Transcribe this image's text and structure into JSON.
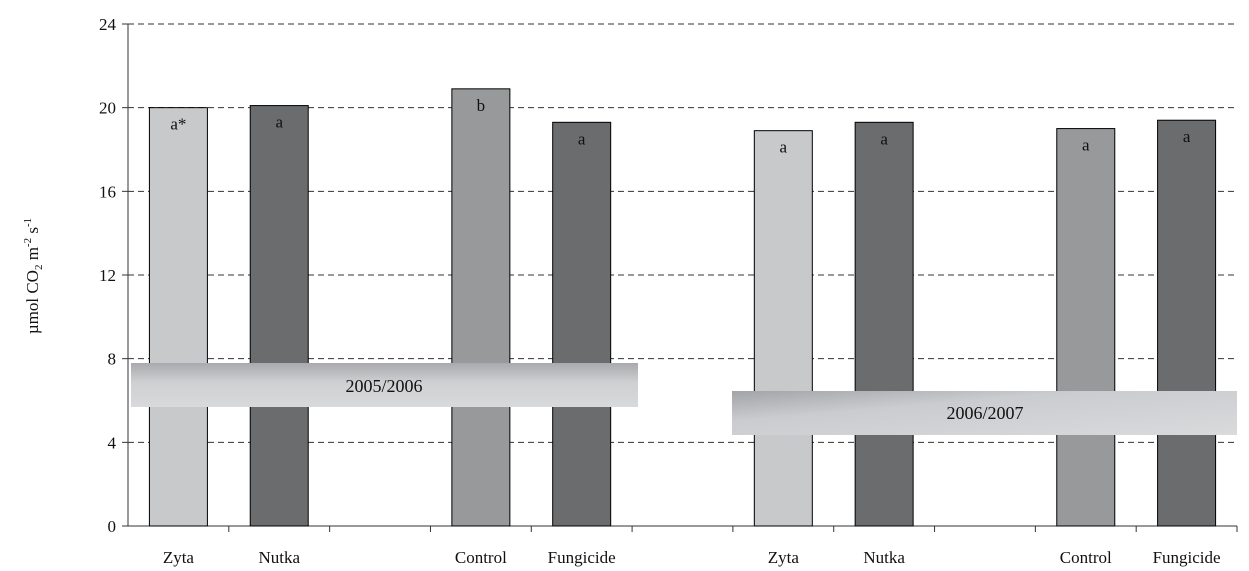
{
  "chart_data": {
    "type": "bar",
    "ylabel": {
      "prefix": "µmol CO",
      "sub": "2",
      "mid1": " m",
      "sup1": "-2",
      "mid2": " s",
      "sup2": "-1"
    },
    "ylim": [
      0,
      24
    ],
    "yticks": [
      "0",
      "4",
      "8",
      "12",
      "16",
      "20",
      "24"
    ],
    "grid": "horizontal dashed",
    "categories": [
      "Zyta",
      "Nutka",
      "Control",
      "Fungicide",
      "Zyta",
      "Nutka",
      "Control",
      "Fungicide"
    ],
    "values": [
      20.0,
      20.1,
      20.9,
      19.3,
      18.9,
      19.3,
      19.0,
      19.4
    ],
    "significance": [
      "a*",
      "a",
      "b",
      "a",
      "a",
      "a",
      "a",
      "a"
    ],
    "colors": [
      "#c8c9cb",
      "#6b6c6e",
      "#98999b",
      "#6b6c6e",
      "#c8c9cb",
      "#6b6c6e",
      "#98999b",
      "#6b6c6e"
    ],
    "periods": [
      "2005/2006",
      "2006/2007"
    ]
  }
}
